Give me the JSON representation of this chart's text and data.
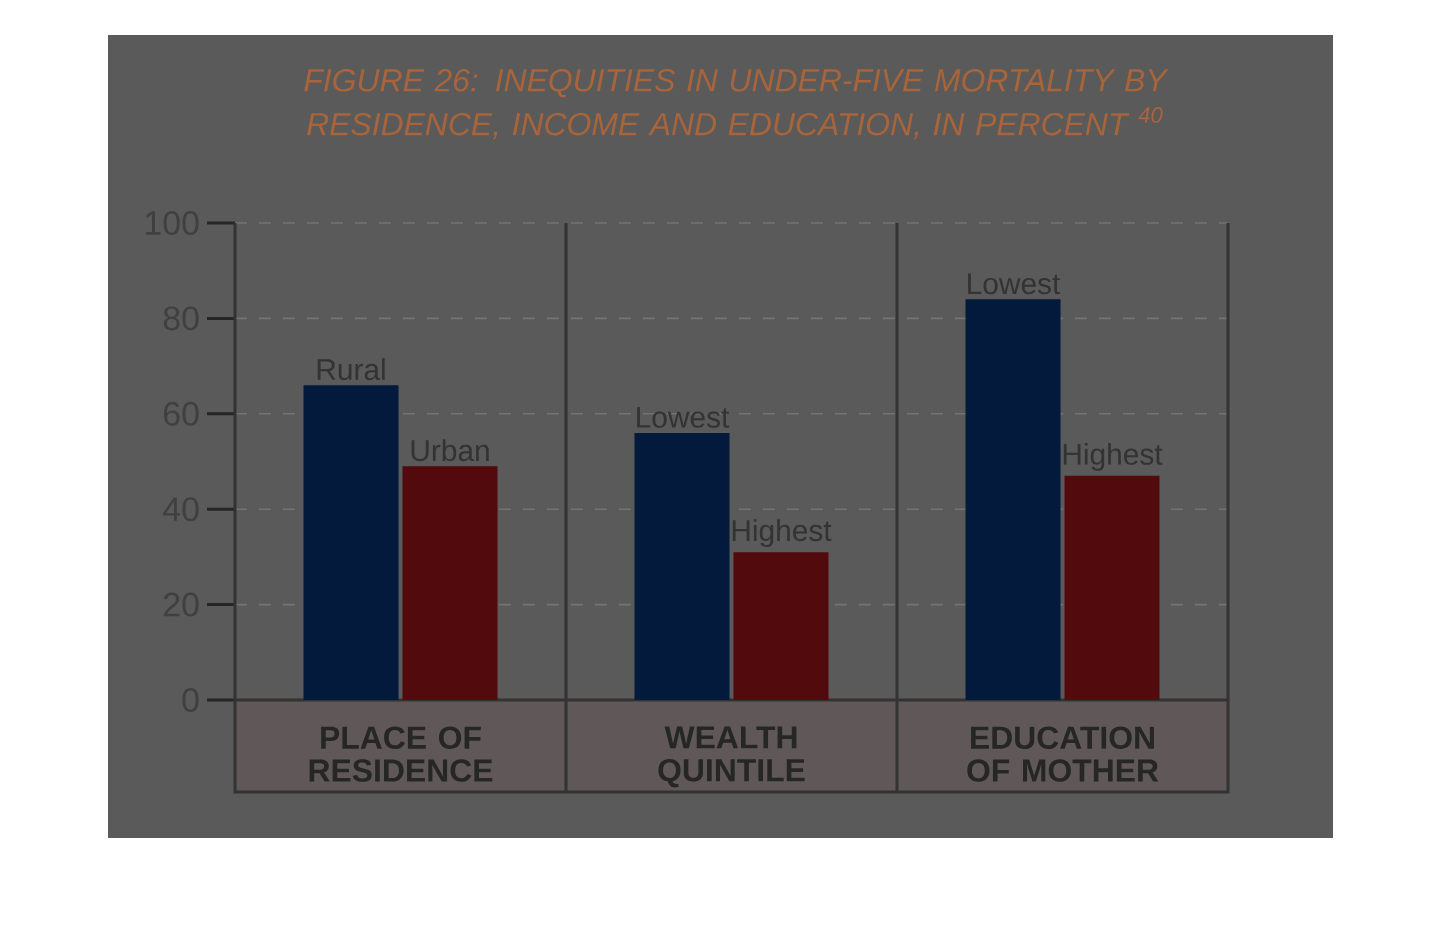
{
  "chart_data": {
    "type": "bar",
    "title": "FIGURE 26: INEQUITIES IN UNDER-FIVE MORTALITY BY RESIDENCE, INCOME AND EDUCATION, IN PERCENT $^{40}$",
    "categories": [
      "PLACE OF RESIDENCE",
      "WEALTH QUINTILE",
      "EDUCATION OF MOTHER"
    ],
    "series": [
      {
        "color": "#031a3c",
        "values": [
          66,
          56,
          84
        ],
        "value_labels": [
          "Rural",
          "Lowest",
          "Lowest"
        ]
      },
      {
        "color": "#520a0c",
        "values": [
          49,
          31,
          47
        ],
        "value_labels": [
          "Urban",
          "Highest",
          "Highest"
        ]
      }
    ],
    "ylim": [
      0,
      100
    ],
    "yticks": [
      0,
      20,
      40,
      60,
      80,
      100
    ],
    "grid": "y"
  }
}
